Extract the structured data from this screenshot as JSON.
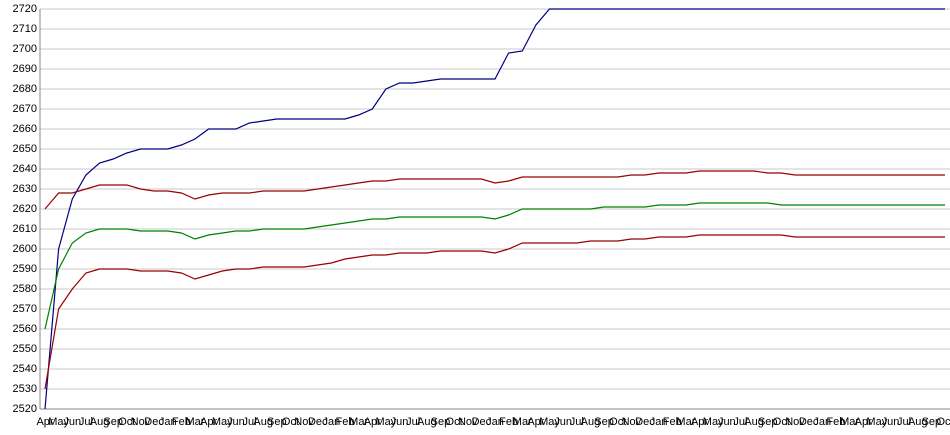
{
  "chart_data": {
    "type": "line",
    "categories": [
      "Apr",
      "May",
      "Jun",
      "Jul",
      "Aug",
      "Sep",
      "Oct",
      "Nov",
      "Dec",
      "Jan",
      "Feb",
      "Mar",
      "Apr",
      "May",
      "Jun",
      "Jul",
      "Aug",
      "Sep",
      "Oct",
      "Nov",
      "Dec",
      "Jan",
      "Feb",
      "Mar",
      "Apr",
      "May",
      "Jun",
      "Jul",
      "Aug",
      "Sep",
      "Oct",
      "Nov",
      "Dec",
      "Jan",
      "Feb",
      "Mar",
      "Apr",
      "May",
      "Jun",
      "Jul",
      "Aug",
      "Sep",
      "Oct",
      "Nov",
      "Dec",
      "Jan",
      "Feb",
      "Mar",
      "Apr",
      "May",
      "Jun",
      "Jul",
      "Aug",
      "Sep",
      "Oct",
      "Nov",
      "Dec",
      "Jan",
      "Feb",
      "Mar",
      "Apr",
      "May",
      "Jun",
      "Jul",
      "Aug",
      "Sep",
      "Oct"
    ],
    "series": [
      {
        "color": "#000080",
        "values": [
          2520,
          2600,
          2625,
          2637,
          2643,
          2645,
          2648,
          2650,
          2650,
          2650,
          2652,
          2655,
          2660,
          2660,
          2660,
          2663,
          2664,
          2665,
          2665,
          2665,
          2665,
          2665,
          2665,
          2667,
          2670,
          2680,
          2683,
          2683,
          2684,
          2685,
          2685,
          2685,
          2685,
          2685,
          2698,
          2699,
          2712,
          2720,
          2720,
          2720,
          2720,
          2720,
          2720,
          2720,
          2720,
          2720,
          2720,
          2720,
          2720,
          2720,
          2720,
          2720,
          2720,
          2720,
          2720,
          2720,
          2720,
          2720,
          2720,
          2720,
          2720,
          2720,
          2720,
          2720,
          2720,
          2720,
          2720
        ]
      },
      {
        "color": "#990000",
        "values": [
          2620,
          2628,
          2628,
          2630,
          2632,
          2632,
          2632,
          2630,
          2629,
          2629,
          2628,
          2625,
          2627,
          2628,
          2628,
          2628,
          2629,
          2629,
          2629,
          2629,
          2630,
          2631,
          2632,
          2633,
          2634,
          2634,
          2635,
          2635,
          2635,
          2635,
          2635,
          2635,
          2635,
          2633,
          2634,
          2636,
          2636,
          2636,
          2636,
          2636,
          2636,
          2636,
          2636,
          2637,
          2637,
          2638,
          2638,
          2638,
          2639,
          2639,
          2639,
          2639,
          2639,
          2638,
          2638,
          2637,
          2637,
          2637,
          2637,
          2637,
          2637,
          2637,
          2637,
          2637,
          2637,
          2637,
          2637
        ]
      },
      {
        "color": "#008000",
        "values": [
          2560,
          2590,
          2603,
          2608,
          2610,
          2610,
          2610,
          2609,
          2609,
          2609,
          2608,
          2605,
          2607,
          2608,
          2609,
          2609,
          2610,
          2610,
          2610,
          2610,
          2611,
          2612,
          2613,
          2614,
          2615,
          2615,
          2616,
          2616,
          2616,
          2616,
          2616,
          2616,
          2616,
          2615,
          2617,
          2620,
          2620,
          2620,
          2620,
          2620,
          2620,
          2621,
          2621,
          2621,
          2621,
          2622,
          2622,
          2622,
          2623,
          2623,
          2623,
          2623,
          2623,
          2623,
          2622,
          2622,
          2622,
          2622,
          2622,
          2622,
          2622,
          2622,
          2622,
          2622,
          2622,
          2622,
          2622
        ]
      },
      {
        "color": "#990000",
        "values": [
          2530,
          2570,
          2580,
          2588,
          2590,
          2590,
          2590,
          2589,
          2589,
          2589,
          2588,
          2585,
          2587,
          2589,
          2590,
          2590,
          2591,
          2591,
          2591,
          2591,
          2592,
          2593,
          2595,
          2596,
          2597,
          2597,
          2598,
          2598,
          2598,
          2599,
          2599,
          2599,
          2599,
          2598,
          2600,
          2603,
          2603,
          2603,
          2603,
          2603,
          2604,
          2604,
          2604,
          2605,
          2605,
          2606,
          2606,
          2606,
          2607,
          2607,
          2607,
          2607,
          2607,
          2607,
          2607,
          2606,
          2606,
          2606,
          2606,
          2606,
          2606,
          2606,
          2606,
          2606,
          2606,
          2606,
          2606
        ]
      }
    ],
    "ylim": [
      2520,
      2720
    ],
    "yticks": [
      2520,
      2530,
      2540,
      2550,
      2560,
      2570,
      2580,
      2590,
      2600,
      2610,
      2620,
      2630,
      2640,
      2650,
      2660,
      2670,
      2680,
      2690,
      2700,
      2710,
      2720
    ],
    "grid": true
  }
}
